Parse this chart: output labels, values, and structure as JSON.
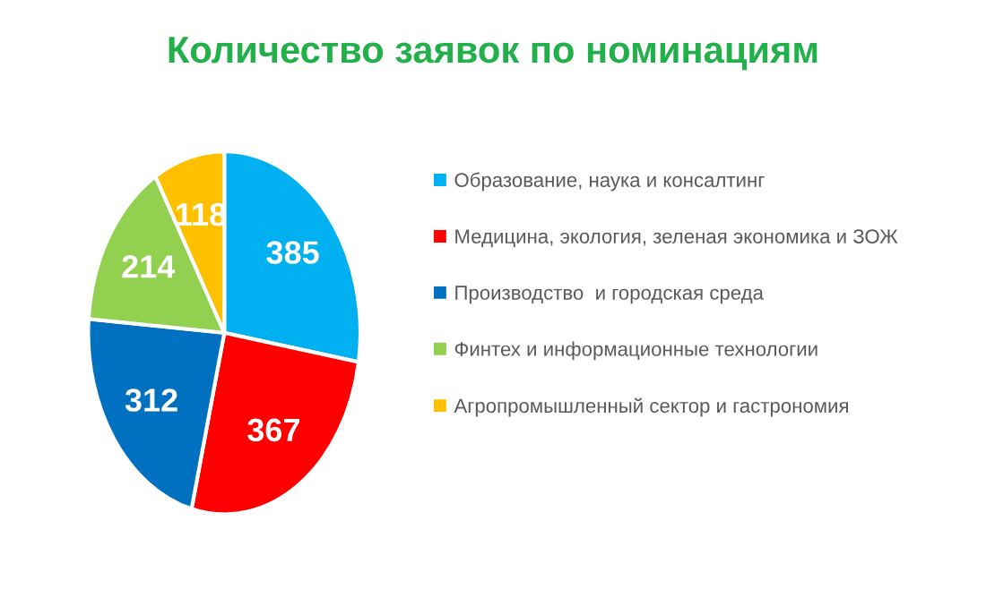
{
  "chart_data": {
    "type": "pie",
    "title": "Количество заявок по номинациям",
    "categories": [
      "Образование, наука и консалтинг",
      "Медицина, экология, зеленая экономика и ЗОЖ",
      "Производство  и городская среда",
      "Финтех и информационные технологии",
      "Агропромышленный сектор и гастрономия"
    ],
    "values": [
      385,
      367,
      312,
      214,
      118
    ],
    "colors": [
      "#00b0f0",
      "#ff0000",
      "#0070c0",
      "#92d050",
      "#ffc000"
    ],
    "data_labels": true,
    "legend": "right"
  }
}
